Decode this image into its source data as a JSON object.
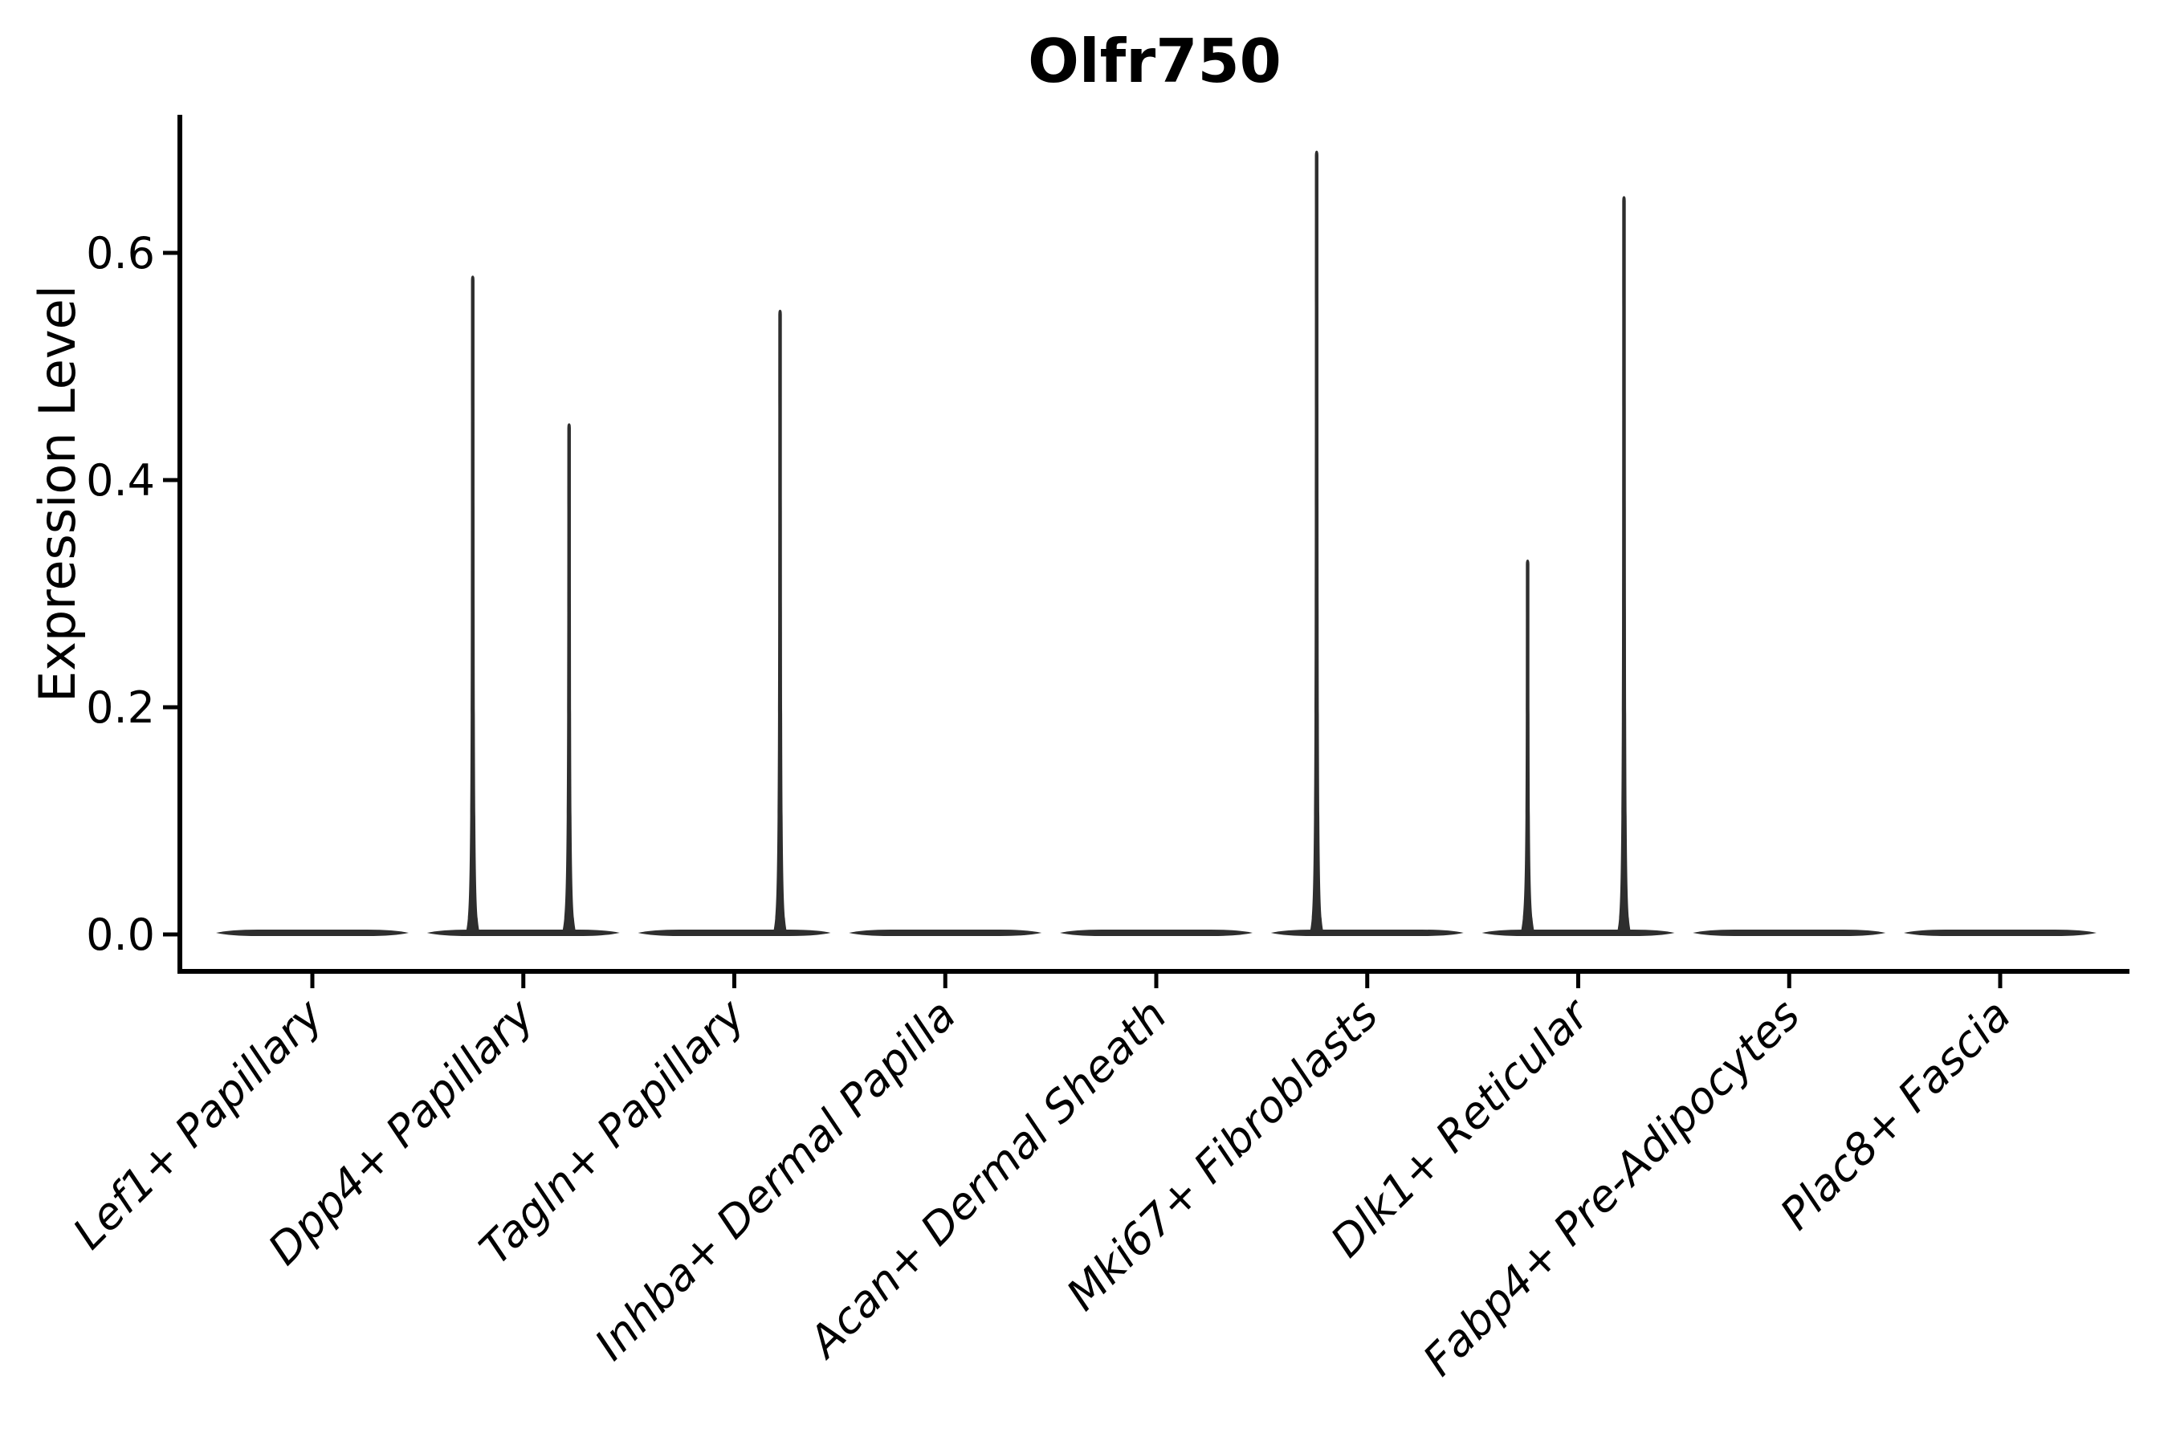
{
  "title": "Olfr750",
  "axes": {
    "ylabel": "Expression Level",
    "xlabel": ""
  },
  "colors": {
    "background": "#ffffff",
    "violin": "#2e2e2e",
    "axis": "#000000",
    "text": "#000000"
  },
  "chart_data": {
    "type": "violin",
    "title": "Olfr750",
    "xlabel": "",
    "ylabel": "Expression Level",
    "categories": [
      "Lef1+ Papillary",
      "Dpp4+ Papillary",
      "Tagln+ Papillary",
      "Inhba+ Dermal Papilla",
      "Acan+ Dermal Sheath",
      "Mki67+ Fibroblasts",
      "Dlk1+ Reticular",
      "Fabp4+ Pre-Adipocytes",
      "Plac8+ Fascia"
    ],
    "ylim": [
      0,
      0.72
    ],
    "yticks": [
      {
        "label": "0.0",
        "value": 0.0
      },
      {
        "label": "0.2",
        "value": 0.2
      },
      {
        "label": "0.4",
        "value": 0.4
      },
      {
        "label": "0.6",
        "value": 0.6
      }
    ],
    "grid": false,
    "legend": null,
    "violins": [
      {
        "category": "Lef1+ Papillary",
        "baseline_value": 0.0,
        "spikes": []
      },
      {
        "category": "Dpp4+ Papillary",
        "baseline_value": 0.0,
        "spikes": [
          {
            "side": "left",
            "value": 0.58
          },
          {
            "side": "right",
            "value": 0.45
          }
        ]
      },
      {
        "category": "Tagln+ Papillary",
        "baseline_value": 0.0,
        "spikes": [
          {
            "side": "right",
            "value": 0.55
          }
        ]
      },
      {
        "category": "Inhba+ Dermal Papilla",
        "baseline_value": 0.0,
        "spikes": []
      },
      {
        "category": "Acan+ Dermal Sheath",
        "baseline_value": 0.0,
        "spikes": []
      },
      {
        "category": "Mki67+ Fibroblasts",
        "baseline_value": 0.0,
        "spikes": [
          {
            "side": "left",
            "value": 0.69
          }
        ]
      },
      {
        "category": "Dlk1+ Reticular",
        "baseline_value": 0.0,
        "spikes": [
          {
            "side": "left",
            "value": 0.33
          },
          {
            "side": "right",
            "value": 0.65
          }
        ]
      },
      {
        "category": "Fabp4+ Pre-Adipocytes",
        "baseline_value": 0.0,
        "spikes": []
      },
      {
        "category": "Plac8+ Fascia",
        "baseline_value": 0.0,
        "spikes": []
      }
    ]
  }
}
